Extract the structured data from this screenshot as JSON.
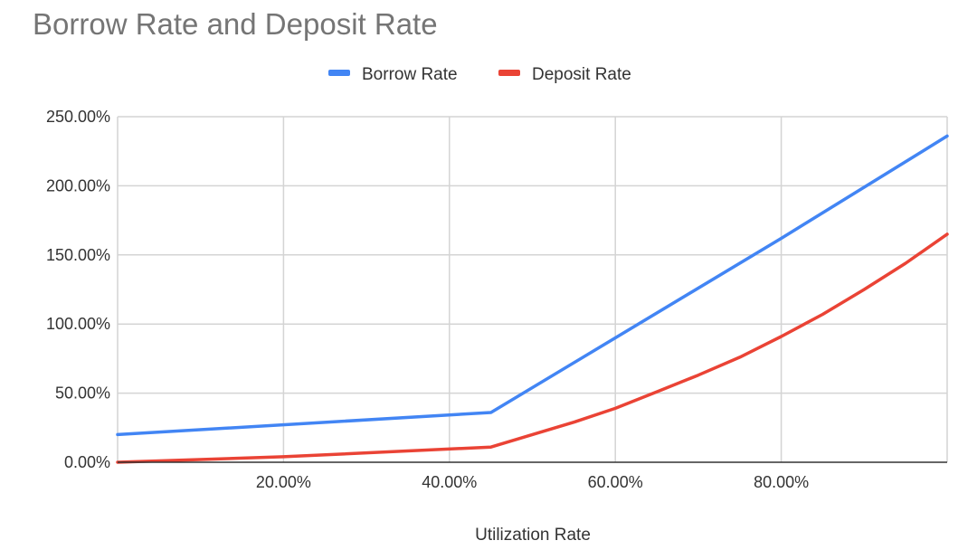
{
  "chart_data": {
    "type": "line",
    "title": "Borrow Rate and Deposit Rate",
    "xlabel": "Utilization Rate",
    "ylabel": "",
    "xlim": [
      0,
      100
    ],
    "ylim": [
      0,
      250
    ],
    "x_ticks": [
      20,
      40,
      60,
      80
    ],
    "x_tick_labels": [
      "20.00%",
      "40.00%",
      "60.00%",
      "80.00%"
    ],
    "y_ticks": [
      0,
      50,
      100,
      150,
      200,
      250
    ],
    "y_tick_labels": [
      "0.00%",
      "50.00%",
      "100.00%",
      "150.00%",
      "200.00%",
      "250.00%"
    ],
    "grid": true,
    "legend_position": "top-center",
    "series": [
      {
        "name": "Borrow Rate",
        "color": "#4285f4",
        "x": [
          0,
          45,
          60,
          80,
          100
        ],
        "y": [
          20,
          36,
          90,
          162,
          236
        ]
      },
      {
        "name": "Deposit Rate",
        "color": "#ea4335",
        "x": [
          0,
          20,
          45,
          50,
          55,
          60,
          65,
          70,
          75,
          80,
          85,
          90,
          95,
          100
        ],
        "y": [
          0,
          4,
          11,
          20,
          29,
          39,
          51,
          63,
          76,
          91,
          107,
          125,
          144,
          165
        ]
      }
    ]
  }
}
